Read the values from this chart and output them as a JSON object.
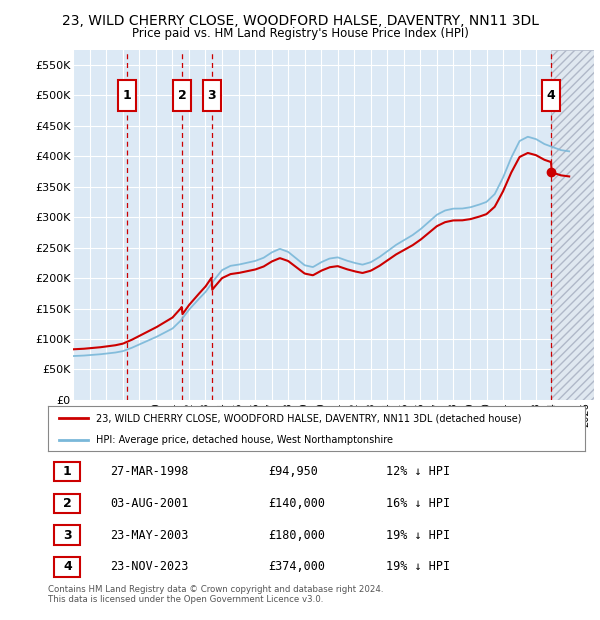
{
  "title": "23, WILD CHERRY CLOSE, WOODFORD HALSE, DAVENTRY, NN11 3DL",
  "subtitle": "Price paid vs. HM Land Registry's House Price Index (HPI)",
  "ylim": [
    0,
    575000
  ],
  "yticks": [
    0,
    50000,
    100000,
    150000,
    200000,
    250000,
    300000,
    350000,
    400000,
    450000,
    500000,
    550000
  ],
  "ytick_labels": [
    "£0",
    "£50K",
    "£100K",
    "£150K",
    "£200K",
    "£250K",
    "£300K",
    "£350K",
    "£400K",
    "£450K",
    "£500K",
    "£550K"
  ],
  "hpi_color": "#7ab8d9",
  "price_color": "#cc0000",
  "dashed_color": "#cc0000",
  "background_color": "#dce9f5",
  "grid_color": "#ffffff",
  "hatch_bg_color": "#e8e8f0",
  "hatch_line_color": "#aaaacc",
  "transactions": [
    {
      "num": 1,
      "date_x": 1998.23,
      "price": 94950,
      "label": "1"
    },
    {
      "num": 2,
      "date_x": 2001.59,
      "price": 140000,
      "label": "2"
    },
    {
      "num": 3,
      "date_x": 2003.39,
      "price": 180000,
      "label": "3"
    },
    {
      "num": 4,
      "date_x": 2023.9,
      "price": 374000,
      "label": "4"
    }
  ],
  "table_rows": [
    {
      "num": "1",
      "date": "27-MAR-1998",
      "price": "£94,950",
      "pct": "12% ↓ HPI"
    },
    {
      "num": "2",
      "date": "03-AUG-2001",
      "price": "£140,000",
      "pct": "16% ↓ HPI"
    },
    {
      "num": "3",
      "date": "23-MAY-2003",
      "price": "£180,000",
      "pct": "19% ↓ HPI"
    },
    {
      "num": "4",
      "date": "23-NOV-2023",
      "price": "£374,000",
      "pct": "19% ↓ HPI"
    }
  ],
  "legend_line1": "23, WILD CHERRY CLOSE, WOODFORD HALSE, DAVENTRY, NN11 3DL (detached house)",
  "legend_line2": "HPI: Average price, detached house, West Northamptonshire",
  "footnote": "Contains HM Land Registry data © Crown copyright and database right 2024.\nThis data is licensed under the Open Government Licence v3.0.",
  "xmin": 1995.0,
  "xmax": 2026.5,
  "last_tx_x": 2023.9
}
